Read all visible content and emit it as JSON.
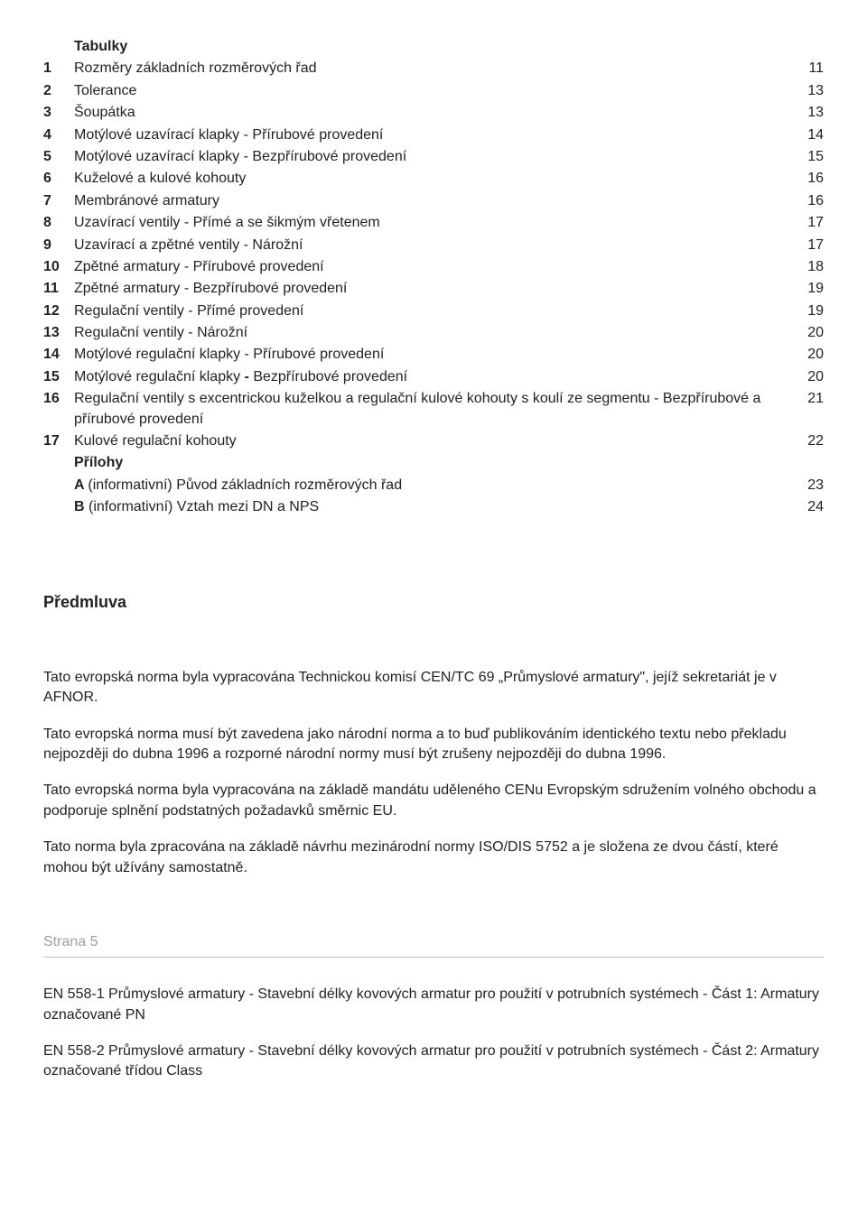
{
  "toc": {
    "heading": "Tabulky",
    "rows": [
      {
        "num": "1",
        "desc": "Rozměry základních rozměrových řad",
        "page": "11",
        "bold": false
      },
      {
        "num": "2",
        "desc": "Tolerance",
        "page": "13",
        "bold": false
      },
      {
        "num": "3",
        "desc": "Šoupátka",
        "page": "13",
        "bold": false
      },
      {
        "num": "4",
        "desc": "Motýlové uzavírací klapky - Přírubové provedení",
        "page": "14",
        "bold": false
      },
      {
        "num": "5",
        "desc": "Motýlové uzavírací klapky - Bezpřírubové provedení",
        "page": "15",
        "bold": false
      },
      {
        "num": "6",
        "desc": "Kuželové a kulové kohouty",
        "page": "16",
        "bold": false
      },
      {
        "num": "7",
        "desc": "Membránové armatury",
        "page": "16",
        "bold": false
      },
      {
        "num": "8",
        "desc": "Uzavírací ventily - Přímé a se šikmým vřetenem",
        "page": "17",
        "bold": false
      },
      {
        "num": "9",
        "desc": "Uzavírací a zpětné ventily - Nárožní",
        "page": "17",
        "bold": false
      },
      {
        "num": "10",
        "desc": "Zpětné armatury - Přírubové provedení",
        "page": "18",
        "bold": false
      },
      {
        "num": "11",
        "desc": "Zpětné armatury - Bezpřírubové provedení",
        "page": "19",
        "bold": false
      },
      {
        "num": "12",
        "desc": "Regulační ventily - Přímé provedení",
        "page": "19",
        "bold": false
      },
      {
        "num": "13",
        "desc": "Regulační ventily - Nárožní",
        "page": "20",
        "bold": false
      },
      {
        "num": "14",
        "desc": "Motýlové regulační klapky - Přírubové provedení",
        "page": "20",
        "bold": false
      },
      {
        "num": "15",
        "desc": "Motýlové regulační klapky - Bezpřírubové provedení",
        "page": "20",
        "bold": false
      },
      {
        "num": "16",
        "desc": "Regulační ventily s excentrickou kuželkou a regulační kulové kohouty s koulí ze segmentu - Bezpřírubové a přírubové provedení",
        "page": "21",
        "bold": false
      },
      {
        "num": "17",
        "desc": "Kulové regulační kohouty",
        "page": "22",
        "bold": false
      }
    ],
    "prilohy": "Přílohy",
    "appendices": [
      {
        "label": "A",
        "desc": "(informativní) Původ základních rozměrových řad",
        "page": "23"
      },
      {
        "label": "B",
        "desc": "(informativní) Vztah mezi DN a NPS",
        "page": "24"
      }
    ]
  },
  "predmluva": {
    "heading": "Předmluva",
    "p1": "Tato evropská norma byla vypracována Technickou komisí CEN/TC 69 „Průmyslové armatury\", jejíž sekretariát je v AFNOR.",
    "p2": "Tato evropská norma musí být zavedena jako národní norma a to buď publikováním identického textu nebo překladu nejpozději do dubna 1996 a rozporné národní normy musí být zrušeny nejpozději do dubna 1996.",
    "p3": "Tato evropská norma byla vypracována na základě mandátu uděleného CENu Evropským sdružením volného obchodu a podporuje splnění podstatných požadavků směrnic EU.",
    "p4": "Tato norma byla zpracována na základě návrhu mezinárodní normy ISO/DIS 5752 a je složena ze dvou částí, které mohou být užívány samostatně."
  },
  "page5": {
    "label": "Strana 5",
    "en1": "EN 558-1 Průmyslové armatury - Stavební délky kovových armatur pro použití v potrubních systémech - Část 1: Armatury označované PN",
    "en2": "EN 558-2 Průmyslové armatury - Stavební délky kovových armatur pro použití v potrubních systémech - Část 2: Armatury označované třídou Class"
  }
}
